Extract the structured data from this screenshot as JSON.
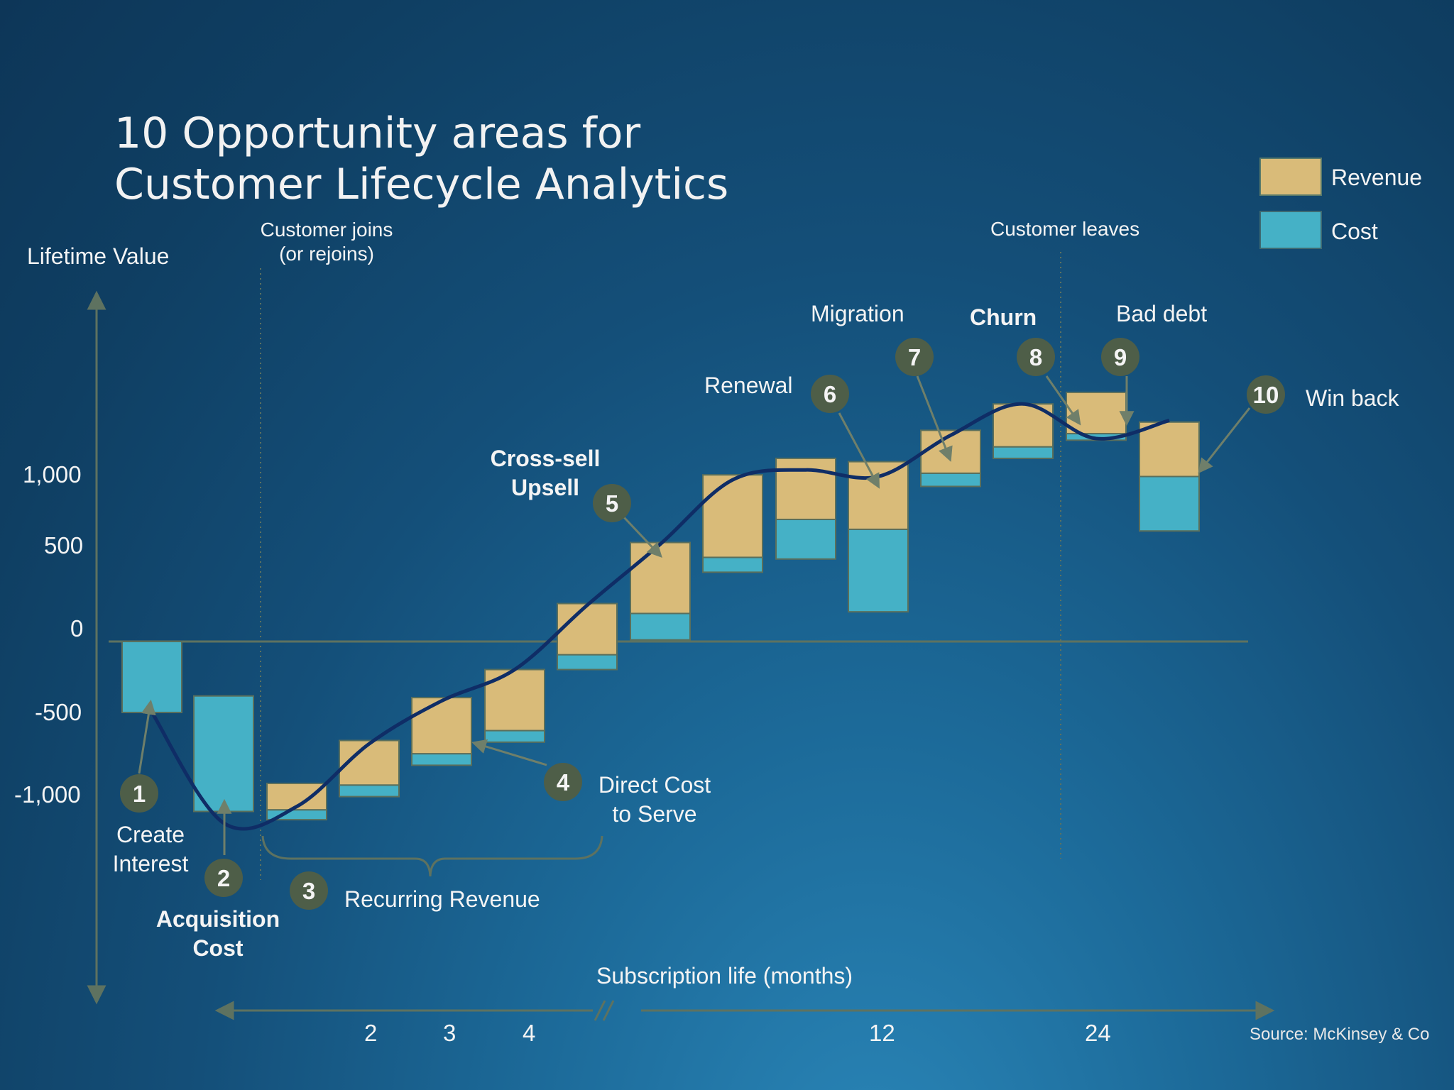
{
  "title_line1": "10 Opportunity areas for",
  "title_line2": "Customer Lifecycle Analytics",
  "legend": {
    "revenue": "Revenue",
    "cost": "Cost",
    "revenue_color": "#d9bb79",
    "cost_color": "#45b1c6"
  },
  "y_axis_label": "Lifetime Value",
  "x_axis_label": "Subscription life (months)",
  "markers": {
    "joins_line1": "Customer joins",
    "joins_line2": "(or rejoins)",
    "leaves": "Customer leaves"
  },
  "callouts": [
    {
      "num": "1",
      "line1": "Create",
      "line2": "Interest",
      "bold": false
    },
    {
      "num": "2",
      "line1": "Acquisition",
      "line2": "Cost",
      "bold": true
    },
    {
      "num": "3",
      "line1": "Recurring Revenue",
      "line2": "",
      "bold": false
    },
    {
      "num": "4",
      "line1": "Direct Cost",
      "line2": "to Serve",
      "bold": false
    },
    {
      "num": "5",
      "line1": "Cross-sell",
      "line2": "Upsell",
      "bold": true
    },
    {
      "num": "6",
      "line1": "Renewal",
      "line2": "",
      "bold": false
    },
    {
      "num": "7",
      "line1": "Migration",
      "line2": "",
      "bold": false
    },
    {
      "num": "8",
      "line1": "Churn",
      "line2": "",
      "bold": true
    },
    {
      "num": "9",
      "line1": "Bad debt",
      "line2": "",
      "bold": false
    },
    {
      "num": "10",
      "line1": "Win back",
      "line2": "",
      "bold": false
    }
  ],
  "source": "Source: McKinsey & Co",
  "chart_data": {
    "type": "bar",
    "ylabel": "Lifetime Value",
    "xlabel": "Subscription life (months)",
    "y_ticks": [
      "1,000",
      "500",
      "0",
      "-500",
      "-1,000"
    ],
    "y_tick_values": [
      1000,
      500,
      0,
      -500,
      -1000
    ],
    "x_ticks": [
      "2",
      "3",
      "4",
      "12",
      "24"
    ],
    "ylim": [
      -1120,
      1250
    ],
    "bars": [
      {
        "revenue": null,
        "cost": [
          -430,
          0
        ]
      },
      {
        "revenue": null,
        "cost": [
          -1030,
          -330
        ]
      },
      {
        "revenue": [
          -1020,
          -860
        ],
        "cost": [
          -1080,
          -1020
        ]
      },
      {
        "revenue": [
          -870,
          -600
        ],
        "cost": [
          -940,
          -870
        ]
      },
      {
        "revenue": [
          -680,
          -340
        ],
        "cost": [
          -750,
          -680
        ]
      },
      {
        "revenue": [
          -540,
          -170
        ],
        "cost": [
          -610,
          -540
        ]
      },
      {
        "revenue": [
          -80,
          230
        ],
        "cost": [
          -170,
          -80
        ]
      },
      {
        "revenue": [
          170,
          600
        ],
        "cost": [
          10,
          170
        ]
      },
      {
        "revenue": [
          510,
          1010
        ],
        "cost": [
          420,
          510
        ]
      },
      {
        "revenue": [
          740,
          1110
        ],
        "cost": [
          500,
          740
        ]
      },
      {
        "revenue": [
          680,
          1090
        ],
        "cost": [
          180,
          680
        ]
      },
      {
        "revenue": [
          1020,
          1280
        ],
        "cost": [
          940,
          1020
        ]
      },
      {
        "revenue": [
          1180,
          1440
        ],
        "cost": [
          1110,
          1180
        ]
      },
      {
        "revenue": [
          1260,
          1510
        ],
        "cost": [
          1220,
          1260
        ]
      },
      {
        "revenue": [
          1000,
          1330
        ],
        "cost": [
          670,
          1000
        ]
      }
    ],
    "ltv_curve": [
      -430,
      -1100,
      -1000,
      -620,
      -360,
      -170,
      220,
      590,
      980,
      1040,
      1000,
      1250,
      1440,
      1230,
      1340
    ]
  }
}
